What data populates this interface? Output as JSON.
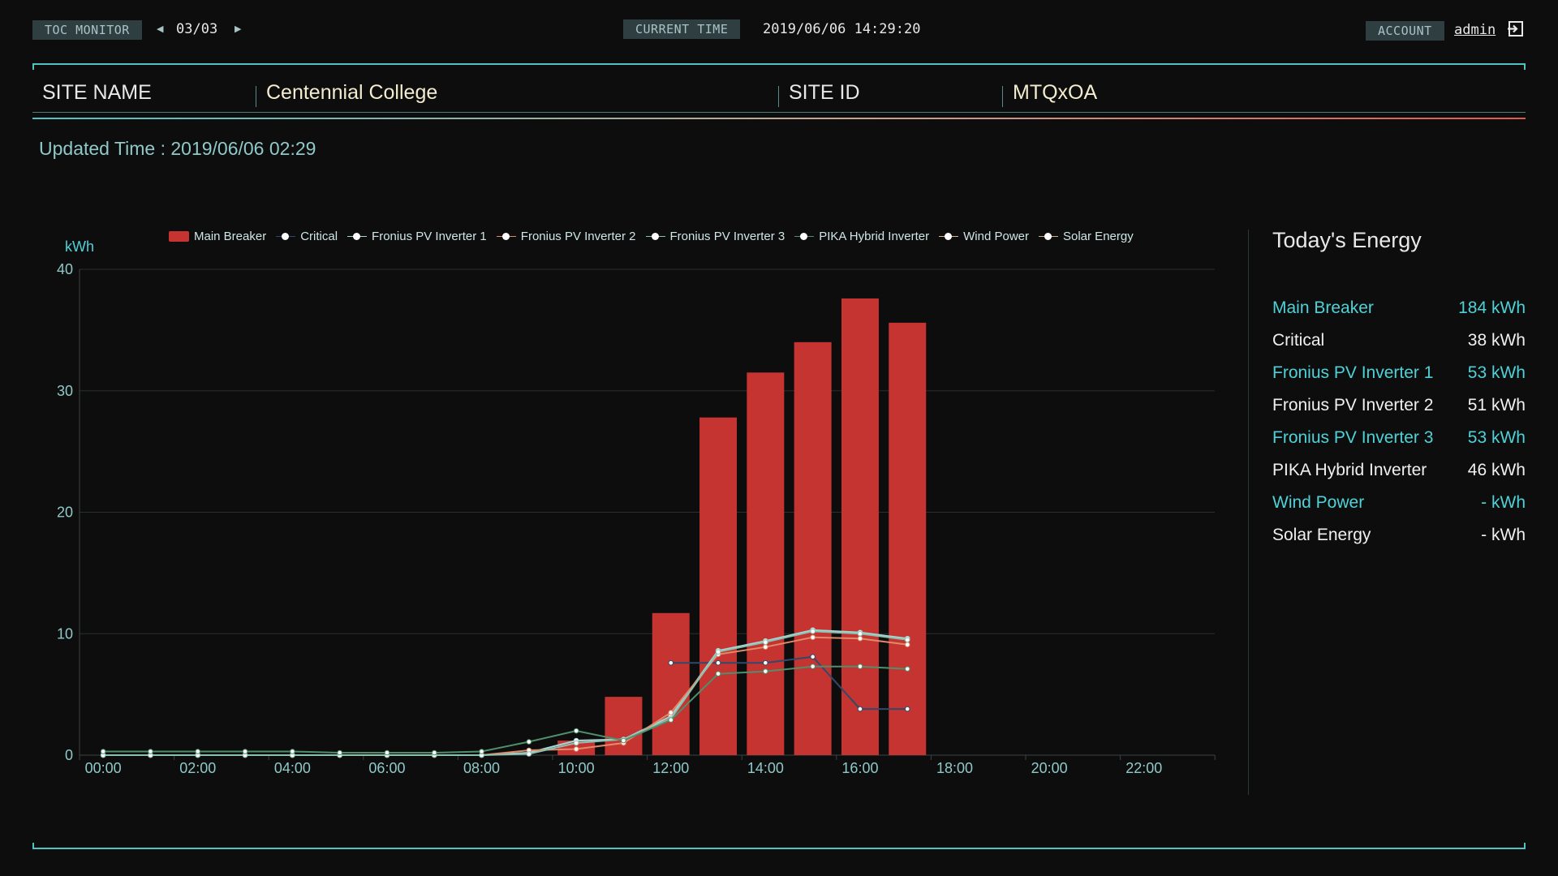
{
  "header": {
    "toc_badge": "TOC MONITOR",
    "page_indicator": "03/03",
    "current_time_badge": "CURRENT TIME",
    "current_time": "2019/06/06 14:29:20",
    "account_badge": "ACCOUNT",
    "account_user": "admin",
    "icons": {
      "prev": "caret-left-icon",
      "next": "caret-right-icon",
      "logout": "logout-icon"
    }
  },
  "site": {
    "name_label": "SITE NAME",
    "name_value": "Centennial College",
    "id_label": "SITE ID",
    "id_value": "MTQxOA"
  },
  "updated_time": "Updated Time : 2019/06/06 02:29",
  "legend": [
    {
      "label": "Main Breaker"
    },
    {
      "label": "Critical"
    },
    {
      "label": "Fronius PV Inverter 1"
    },
    {
      "label": "Fronius PV Inverter 2"
    },
    {
      "label": "Fronius PV Inverter 3"
    },
    {
      "label": "PIKA Hybrid Inverter"
    },
    {
      "label": "Wind Power"
    },
    {
      "label": "Solar Energy"
    }
  ],
  "energy": {
    "title": "Today's Energy",
    "rows": [
      {
        "label": "Main Breaker",
        "value": "184 kWh"
      },
      {
        "label": "Critical",
        "value": "38 kWh"
      },
      {
        "label": "Fronius PV Inverter 1",
        "value": "53 kWh"
      },
      {
        "label": "Fronius PV Inverter 2",
        "value": "51 kWh"
      },
      {
        "label": "Fronius PV Inverter 3",
        "value": "53 kWh"
      },
      {
        "label": "PIKA Hybrid Inverter",
        "value": "46 kWh"
      },
      {
        "label": "Wind Power",
        "value": "- kWh"
      },
      {
        "label": "Solar Energy",
        "value": "- kWh"
      }
    ]
  },
  "chart_data": {
    "type": "bar",
    "ylabel": "kWh",
    "ylim": [
      0,
      40
    ],
    "yticks": [
      "0",
      "10",
      "20",
      "30",
      "40"
    ],
    "xticks": [
      "00:00",
      "02:00",
      "04:00",
      "06:00",
      "08:00",
      "10:00",
      "12:00",
      "14:00",
      "16:00",
      "18:00",
      "20:00",
      "22:00"
    ],
    "hours": [
      "00:00",
      "01:00",
      "02:00",
      "03:00",
      "04:00",
      "05:00",
      "06:00",
      "07:00",
      "08:00",
      "09:00",
      "10:00",
      "11:00",
      "12:00",
      "13:00",
      "14:00",
      "15:00",
      "16:00",
      "17:00",
      "18:00",
      "19:00",
      "20:00",
      "21:00",
      "22:00",
      "23:00"
    ],
    "grid": true,
    "colors": {
      "bar": "#c53431",
      "critical": "#2f4a6a",
      "inv1": "#a9d6d2",
      "inv2": "#e08a6a",
      "inv3": "#8cc2b2",
      "pika": "#4f8f6c",
      "wind": "#d9b890",
      "solar": "#c9b48a"
    },
    "bar_series": {
      "name": "Main Breaker",
      "values": [
        0,
        0,
        0,
        0,
        0,
        0,
        0,
        0,
        0,
        0,
        1.2,
        4.8,
        11.7,
        27.8,
        31.5,
        34.0,
        37.6,
        35.6,
        null,
        null,
        null,
        null,
        null,
        null
      ]
    },
    "series": [
      {
        "name": "Critical",
        "color_key": "critical",
        "values": [
          null,
          null,
          null,
          null,
          null,
          null,
          null,
          null,
          null,
          null,
          null,
          null,
          7.6,
          7.6,
          7.6,
          8.1,
          3.8,
          3.8,
          null,
          null,
          null,
          null,
          null,
          null
        ]
      },
      {
        "name": "Fronius PV Inverter 1",
        "color_key": "inv1",
        "values": [
          0,
          0,
          0,
          0,
          0,
          0,
          0,
          0,
          0,
          0.2,
          1.2,
          1.3,
          3.2,
          8.6,
          9.4,
          10.3,
          10.1,
          9.6,
          null,
          null,
          null,
          null,
          null,
          null
        ]
      },
      {
        "name": "Fronius PV Inverter 2",
        "color_key": "inv2",
        "values": [
          0,
          0,
          0,
          0,
          0,
          0,
          0,
          0,
          0,
          0.4,
          0.5,
          1.0,
          3.5,
          8.3,
          8.9,
          9.7,
          9.6,
          9.1,
          null,
          null,
          null,
          null,
          null,
          null
        ]
      },
      {
        "name": "Fronius PV Inverter 3",
        "color_key": "inv3",
        "values": [
          0,
          0,
          0,
          0,
          0,
          0,
          0,
          0,
          0,
          0.1,
          1.0,
          1.3,
          3.0,
          8.5,
          9.3,
          10.2,
          10.0,
          9.5,
          null,
          null,
          null,
          null,
          null,
          null
        ]
      },
      {
        "name": "PIKA Hybrid Inverter",
        "color_key": "pika",
        "values": [
          0.3,
          0.3,
          0.3,
          0.3,
          0.3,
          0.2,
          0.2,
          0.2,
          0.3,
          1.1,
          2.0,
          1.2,
          2.9,
          6.7,
          6.9,
          7.3,
          7.3,
          7.1,
          null,
          null,
          null,
          null,
          null,
          null
        ]
      }
    ]
  }
}
